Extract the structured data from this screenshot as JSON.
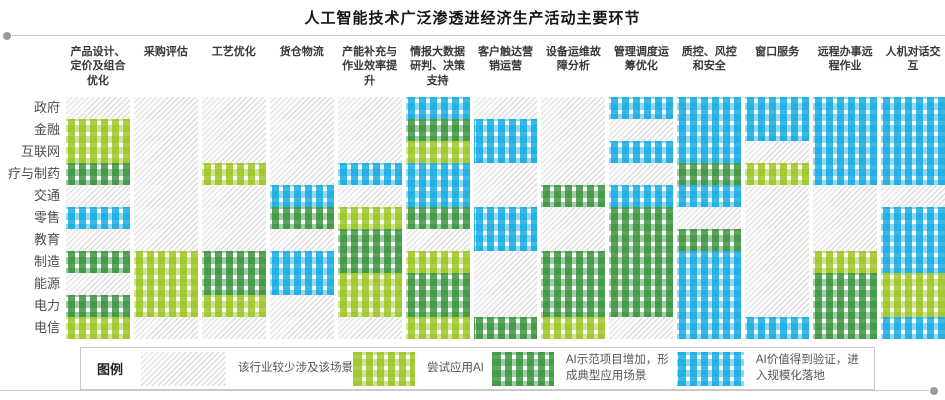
{
  "title": "人工智能技术广泛渗透进经济生产活动主要环节",
  "legend": {
    "title": "图例",
    "items": [
      {
        "level": "none",
        "label": "该行业较少涉及该场景"
      },
      {
        "level": "try",
        "label": "尝试应用AI"
      },
      {
        "level": "demo",
        "label": "AI示范项目增加，形成典型应用场景"
      },
      {
        "level": "scale",
        "label": "AI价值得到验证，进入规模化落地"
      }
    ]
  },
  "chart_data": {
    "type": "heatmap",
    "x_categories": [
      "产品设计、定价及组合优化",
      "采购评估",
      "工艺优化",
      "货仓物流",
      "产能补充与作业效率提升",
      "情报大数据研判、决策支持",
      "客户触达营销运营",
      "设备运维故障分析",
      "管理调度运筹优化",
      "质控、风控和安全",
      "窗口服务",
      "远程办事远程作业",
      "人机对话交互"
    ],
    "y_categories": [
      "政府",
      "金融",
      "互联网",
      "疗与制药",
      "交通",
      "零售",
      "教育",
      "制造",
      "能源",
      "电力",
      "电信"
    ],
    "levels": {
      "none": {
        "label": "该行业较少涉及该场景",
        "color": "#d6d6d6",
        "pattern": "diagonal-hatch"
      },
      "try": {
        "label": "尝试应用AI",
        "color": "#a9cb3a",
        "pattern": "gingham"
      },
      "demo": {
        "label": "AI示范项目增加，形成典型应用场景",
        "color": "#4da04e",
        "pattern": "gingham"
      },
      "scale": {
        "label": "AI价值得到验证，进入规模化落地",
        "color": "#29b1e4",
        "pattern": "gingham"
      }
    },
    "values": [
      [
        "none",
        "none",
        "none",
        "none",
        "none",
        "scale",
        "none",
        "none",
        "scale",
        "scale",
        "scale",
        "scale",
        "scale"
      ],
      [
        "try",
        "none",
        "none",
        "none",
        "none",
        "demo",
        "scale",
        "none",
        "none",
        "scale",
        "scale",
        "scale",
        "scale"
      ],
      [
        "try",
        "none",
        "none",
        "none",
        "none",
        "try",
        "scale",
        "none",
        "scale",
        "scale",
        "none",
        "scale",
        "scale"
      ],
      [
        "demo",
        "none",
        "try",
        "none",
        "scale",
        "scale",
        "none",
        "none",
        "none",
        "demo",
        "try",
        "scale",
        "scale"
      ],
      [
        "none",
        "none",
        "none",
        "scale",
        "none",
        "scale",
        "none",
        "demo",
        "scale",
        "scale",
        "none",
        "none",
        "none"
      ],
      [
        "scale",
        "none",
        "none",
        "demo",
        "try",
        "demo",
        "scale",
        "none",
        "demo",
        "none",
        "none",
        "none",
        "scale"
      ],
      [
        "none",
        "none",
        "none",
        "none",
        "demo",
        "none",
        "scale",
        "none",
        "demo",
        "demo",
        "none",
        "none",
        "scale"
      ],
      [
        "demo",
        "try",
        "demo",
        "scale",
        "demo",
        "try",
        "none",
        "demo",
        "demo",
        "scale",
        "none",
        "try",
        "scale"
      ],
      [
        "none",
        "try",
        "demo",
        "scale",
        "try",
        "demo",
        "none",
        "demo",
        "demo",
        "scale",
        "none",
        "demo",
        "try"
      ],
      [
        "demo",
        "try",
        "try",
        "none",
        "try",
        "demo",
        "none",
        "demo",
        "demo",
        "scale",
        "none",
        "demo",
        "try"
      ],
      [
        "try",
        "none",
        "none",
        "none",
        "none",
        "try",
        "demo",
        "try",
        "none",
        "scale",
        "scale",
        "demo",
        "scale"
      ]
    ]
  }
}
